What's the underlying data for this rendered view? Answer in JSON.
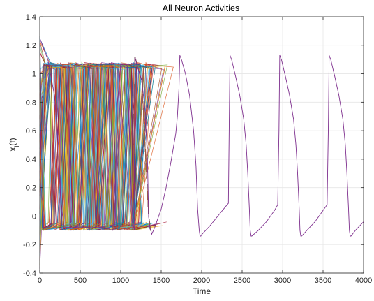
{
  "chart_data": {
    "type": "line",
    "title": "All Neuron Activities",
    "xlabel": "Time",
    "ylabel": {
      "base": "x",
      "sub": "i",
      "tail": "(t)"
    },
    "xlim": [
      0,
      4000
    ],
    "ylim": [
      -0.4,
      1.4
    ],
    "xticks": [
      0,
      500,
      1000,
      1500,
      2000,
      2500,
      3000,
      3500,
      4000
    ],
    "yticks": [
      -0.4,
      -0.2,
      0,
      0.2,
      0.4,
      0.6,
      0.8,
      1,
      1.2,
      1.4
    ],
    "xtick_labels": [
      "0",
      "500",
      "1000",
      "1500",
      "2000",
      "2500",
      "3000",
      "3500",
      "4000"
    ],
    "ytick_labels": [
      "-0.4",
      "-0.2",
      "0",
      "0.2",
      "0.4",
      "0.6",
      "0.8",
      "1",
      "1.2",
      "1.4"
    ],
    "grid": true,
    "legend": "none",
    "series_count_approx": 100,
    "dominant_series": {
      "x": [
        0,
        100,
        180,
        230,
        260,
        300,
        400,
        500,
        600,
        700,
        800,
        850,
        900,
        920,
        940,
        960,
        1000,
        1060,
        1080,
        1100,
        1120,
        1150,
        1170,
        1175,
        1200,
        1260,
        1300,
        1330,
        1345,
        1360,
        1375,
        1380,
        1420,
        1500,
        1560,
        1620,
        1680,
        1700,
        1720,
        1730,
        1750,
        1800,
        1850,
        1900,
        1930,
        1950,
        1970,
        1980,
        1990,
        2000,
        2100,
        2200,
        2300,
        2330,
        2340,
        2350,
        2370,
        2420,
        2470,
        2520,
        2550,
        2570,
        2590,
        2600,
        2610,
        2620,
        2700,
        2800,
        2900,
        2940,
        2955,
        2965,
        2985,
        3035,
        3085,
        3135,
        3165,
        3185,
        3205,
        3215,
        3225,
        3235,
        3300,
        3400,
        3500,
        3550,
        3565,
        3575,
        3595,
        3645,
        3695,
        3745,
        3775,
        3795,
        3815,
        3825,
        3835,
        3845,
        3900,
        4000
      ],
      "y": [
        1.25,
        1.1,
        0.85,
        0.5,
        0.1,
        -0.08,
        -0.08,
        -0.08,
        -0.08,
        -0.08,
        -0.08,
        -0.09,
        -0.1,
        -0.08,
        0.3,
        0.8,
        1.07,
        1.07,
        1.05,
        0.8,
        0.3,
        -0.05,
        -0.1,
        1.12,
        1.06,
        0.95,
        0.75,
        0.4,
        0.0,
        -0.09,
        -0.1,
        -0.13,
        -0.08,
        0.05,
        0.2,
        0.38,
        0.58,
        0.7,
        0.9,
        1.13,
        1.1,
        1.0,
        0.85,
        0.6,
        0.35,
        0.05,
        -0.1,
        -0.14,
        -0.14,
        -0.13,
        -0.07,
        0.0,
        0.07,
        0.09,
        0.6,
        1.13,
        1.1,
        0.98,
        0.85,
        0.68,
        0.5,
        0.3,
        0.05,
        -0.1,
        -0.14,
        -0.14,
        -0.1,
        -0.04,
        0.04,
        0.08,
        0.6,
        1.13,
        1.1,
        0.98,
        0.85,
        0.68,
        0.5,
        0.3,
        0.05,
        -0.1,
        -0.14,
        -0.14,
        -0.1,
        -0.04,
        0.04,
        0.08,
        0.6,
        1.13,
        1.1,
        0.98,
        0.85,
        0.68,
        0.5,
        0.3,
        0.05,
        -0.1,
        -0.14,
        -0.14,
        -0.1,
        -0.04
      ]
    },
    "colors": [
      "#0072bd",
      "#d95319",
      "#edb120",
      "#7e2f8e",
      "#77ac30",
      "#4dbeee",
      "#a2142f"
    ]
  }
}
